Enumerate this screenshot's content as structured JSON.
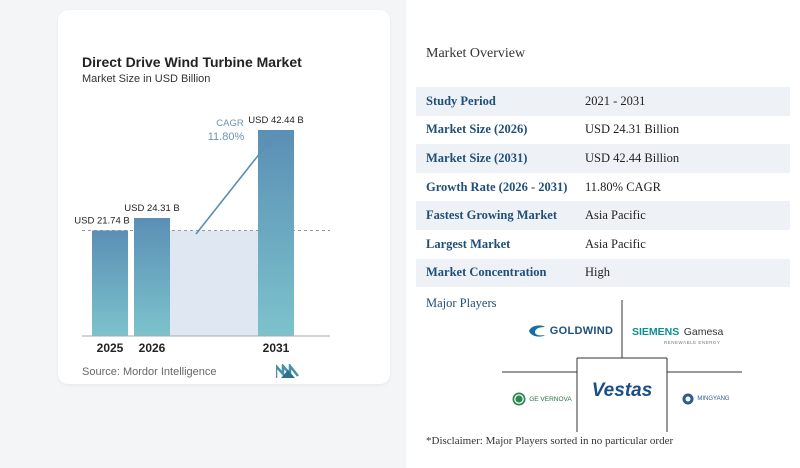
{
  "chart_data": {
    "type": "bar",
    "title": "Direct Drive Wind Turbine Market",
    "subtitle": "Market Size in USD Billion",
    "categories": [
      "2025",
      "2026",
      "2031"
    ],
    "values": [
      21.74,
      24.31,
      42.44
    ],
    "value_labels": [
      "USD 21.74 B",
      "USD 24.31 B",
      "USD 42.44 B"
    ],
    "ylim": [
      0,
      42.44
    ],
    "cagr_label": "CAGR",
    "cagr_value": "11.80%",
    "source": "Source: Mordor Intelligence",
    "colors": {
      "bar_top": "#5b8fb5",
      "bar_bottom": "#7cc3cc",
      "band": "#dfe8f2",
      "arrow": "#5b8fb5"
    }
  },
  "overview": {
    "title": "Market Overview",
    "rows": [
      {
        "label": "Study Period",
        "value": "2021 - 2031"
      },
      {
        "label": "Market Size (2026)",
        "value": "USD 24.31 Billion"
      },
      {
        "label": "Market Size (2031)",
        "value": "USD 42.44 Billion"
      },
      {
        "label": "Growth Rate (2026 - 2031)",
        "value": "11.80% CAGR"
      },
      {
        "label": "Fastest Growing Market",
        "value": "Asia Pacific"
      },
      {
        "label": "Largest Market",
        "value": "Asia Pacific"
      },
      {
        "label": "Market Concentration",
        "value": "High"
      }
    ]
  },
  "players": {
    "title": "Major Players",
    "goldwind": "GOLDWIND",
    "siemens_a": "SIEMENS",
    "siemens_b": "Gamesa",
    "siemens_tag": "RENEWABLE ENERGY",
    "vestas": "Vestas",
    "ge": "GE VERNOVA",
    "mingyang": "MINGYANG"
  },
  "disclaimer": "*Disclaimer: Major Players sorted in no particular order"
}
